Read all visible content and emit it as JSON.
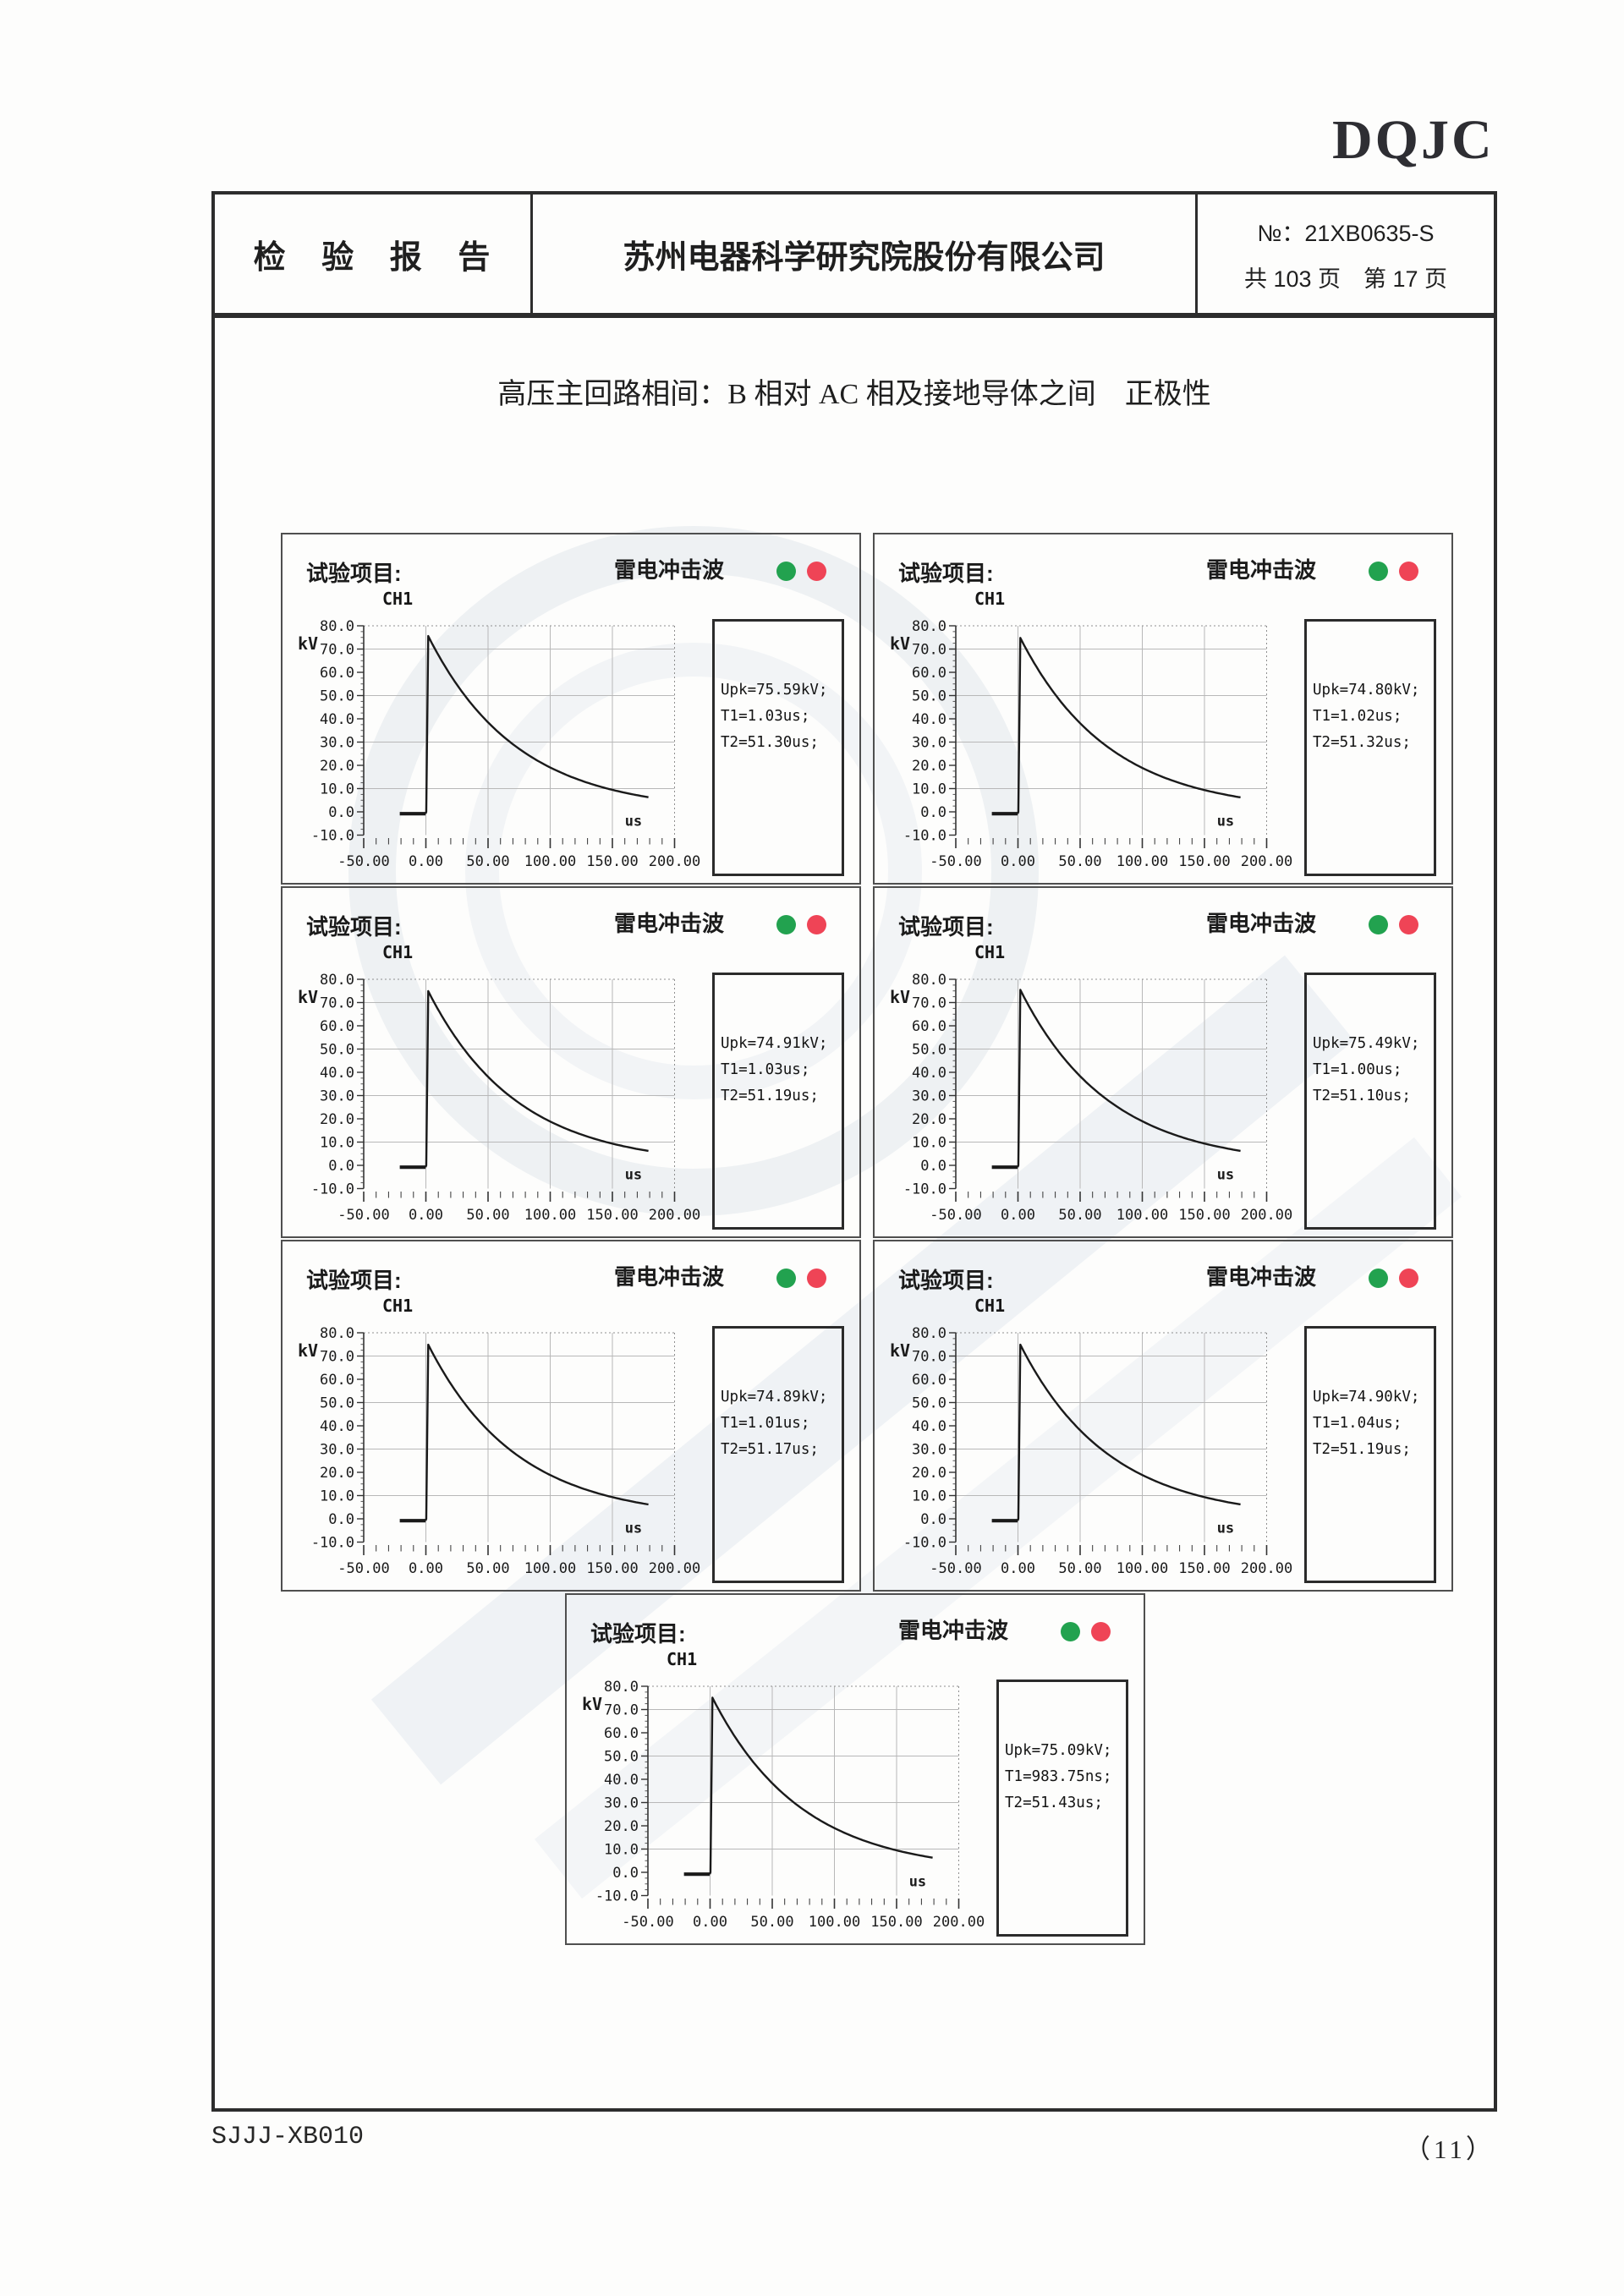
{
  "page": {
    "logo": "DQJC",
    "footer_left": "SJJJ-XB010",
    "footer_right": "（11）"
  },
  "header": {
    "report_title": "检 验 报 告",
    "company": "苏州电器科学研究院股份有限公司",
    "report_no": "№：21XB0635-S",
    "page_info": "共 103 页　第 17 页"
  },
  "section_title": "高压主回路相间：B 相对 AC 相及接地导体之间　正极性",
  "chart_axes": {
    "test_item_label": "试验项目:",
    "chart_title": "雷电冲击波",
    "channel": "CH1",
    "ylabel": "kV",
    "xlabel": "us",
    "xlim": [
      -50,
      200
    ],
    "ylim": [
      -10,
      80
    ],
    "x_tick_values": [
      -50,
      0,
      50,
      100,
      150,
      200
    ],
    "x_ticks": [
      "-50.00",
      "0.00",
      "50.00",
      "100.00",
      "150.00",
      "200.00"
    ],
    "y_tick_values": [
      80,
      70,
      60,
      50,
      40,
      30,
      20,
      10,
      0,
      -10
    ],
    "y_ticks": [
      "80.0",
      "70.0",
      "60.0",
      "50.0",
      "40.0",
      "30.0",
      "20.0",
      "10.0",
      "0.0",
      "-10.0"
    ],
    "h_gridlines_kV": [
      70,
      50,
      30,
      10
    ],
    "v_gridlines_us": [
      0,
      50,
      100,
      150
    ],
    "grid": true,
    "colors": {
      "green_dot": "#22a24f",
      "red_dot": "#ef4456",
      "trace": "#1a1a1a",
      "grid": "#b8b8b8"
    }
  },
  "chart_data": [
    {
      "type": "line",
      "title": "雷电冲击波",
      "readout": [
        "Upk=75.59kV;",
        "T1=1.03us;",
        "T2=51.30us;"
      ],
      "upk_kV": 75.59,
      "t1": "1.03us",
      "t2_us": 51.3,
      "waveform": {
        "baseline_kV": 0,
        "baseline_start_us": -20,
        "rise_at_us": 0,
        "peak_kV": 75.59,
        "half_value_us": 51.3,
        "end_us": 180,
        "end_kV": 6
      }
    },
    {
      "type": "line",
      "title": "雷电冲击波",
      "readout": [
        "Upk=74.80kV;",
        "T1=1.02us;",
        "T2=51.32us;"
      ],
      "upk_kV": 74.8,
      "t1": "1.02us",
      "t2_us": 51.32,
      "waveform": {
        "baseline_kV": 0,
        "baseline_start_us": -20,
        "rise_at_us": 0,
        "peak_kV": 74.8,
        "half_value_us": 51.32,
        "end_us": 180,
        "end_kV": 6
      }
    },
    {
      "type": "line",
      "title": "雷电冲击波",
      "readout": [
        "Upk=74.91kV;",
        "T1=1.03us;",
        "T2=51.19us;"
      ],
      "upk_kV": 74.91,
      "t1": "1.03us",
      "t2_us": 51.19,
      "waveform": {
        "baseline_kV": 0,
        "baseline_start_us": -20,
        "rise_at_us": 0,
        "peak_kV": 74.91,
        "half_value_us": 51.19,
        "end_us": 180,
        "end_kV": 6
      }
    },
    {
      "type": "line",
      "title": "雷电冲击波",
      "readout": [
        "Upk=75.49kV;",
        "T1=1.00us;",
        "T2=51.10us;"
      ],
      "upk_kV": 75.49,
      "t1": "1.00us",
      "t2_us": 51.1,
      "waveform": {
        "baseline_kV": 0,
        "baseline_start_us": -20,
        "rise_at_us": 0,
        "peak_kV": 75.49,
        "half_value_us": 51.1,
        "end_us": 180,
        "end_kV": 6
      }
    },
    {
      "type": "line",
      "title": "雷电冲击波",
      "readout": [
        "Upk=74.89kV;",
        "T1=1.01us;",
        "T2=51.17us;"
      ],
      "upk_kV": 74.89,
      "t1": "1.01us",
      "t2_us": 51.17,
      "waveform": {
        "baseline_kV": 0,
        "baseline_start_us": -20,
        "rise_at_us": 0,
        "peak_kV": 74.89,
        "half_value_us": 51.17,
        "end_us": 180,
        "end_kV": 6
      }
    },
    {
      "type": "line",
      "title": "雷电冲击波",
      "readout": [
        "Upk=74.90kV;",
        "T1=1.04us;",
        "T2=51.19us;"
      ],
      "upk_kV": 74.9,
      "t1": "1.04us",
      "t2_us": 51.19,
      "waveform": {
        "baseline_kV": 0,
        "baseline_start_us": -20,
        "rise_at_us": 0,
        "peak_kV": 74.9,
        "half_value_us": 51.19,
        "end_us": 180,
        "end_kV": 6
      }
    },
    {
      "type": "line",
      "title": "雷电冲击波",
      "readout": [
        "Upk=75.09kV;",
        "T1=983.75ns;",
        "T2=51.43us;"
      ],
      "upk_kV": 75.09,
      "t1": "983.75ns",
      "t2_us": 51.43,
      "waveform": {
        "baseline_kV": 0,
        "baseline_start_us": -20,
        "rise_at_us": 0,
        "peak_kV": 75.09,
        "half_value_us": 51.43,
        "end_us": 180,
        "end_kV": 6
      }
    }
  ]
}
